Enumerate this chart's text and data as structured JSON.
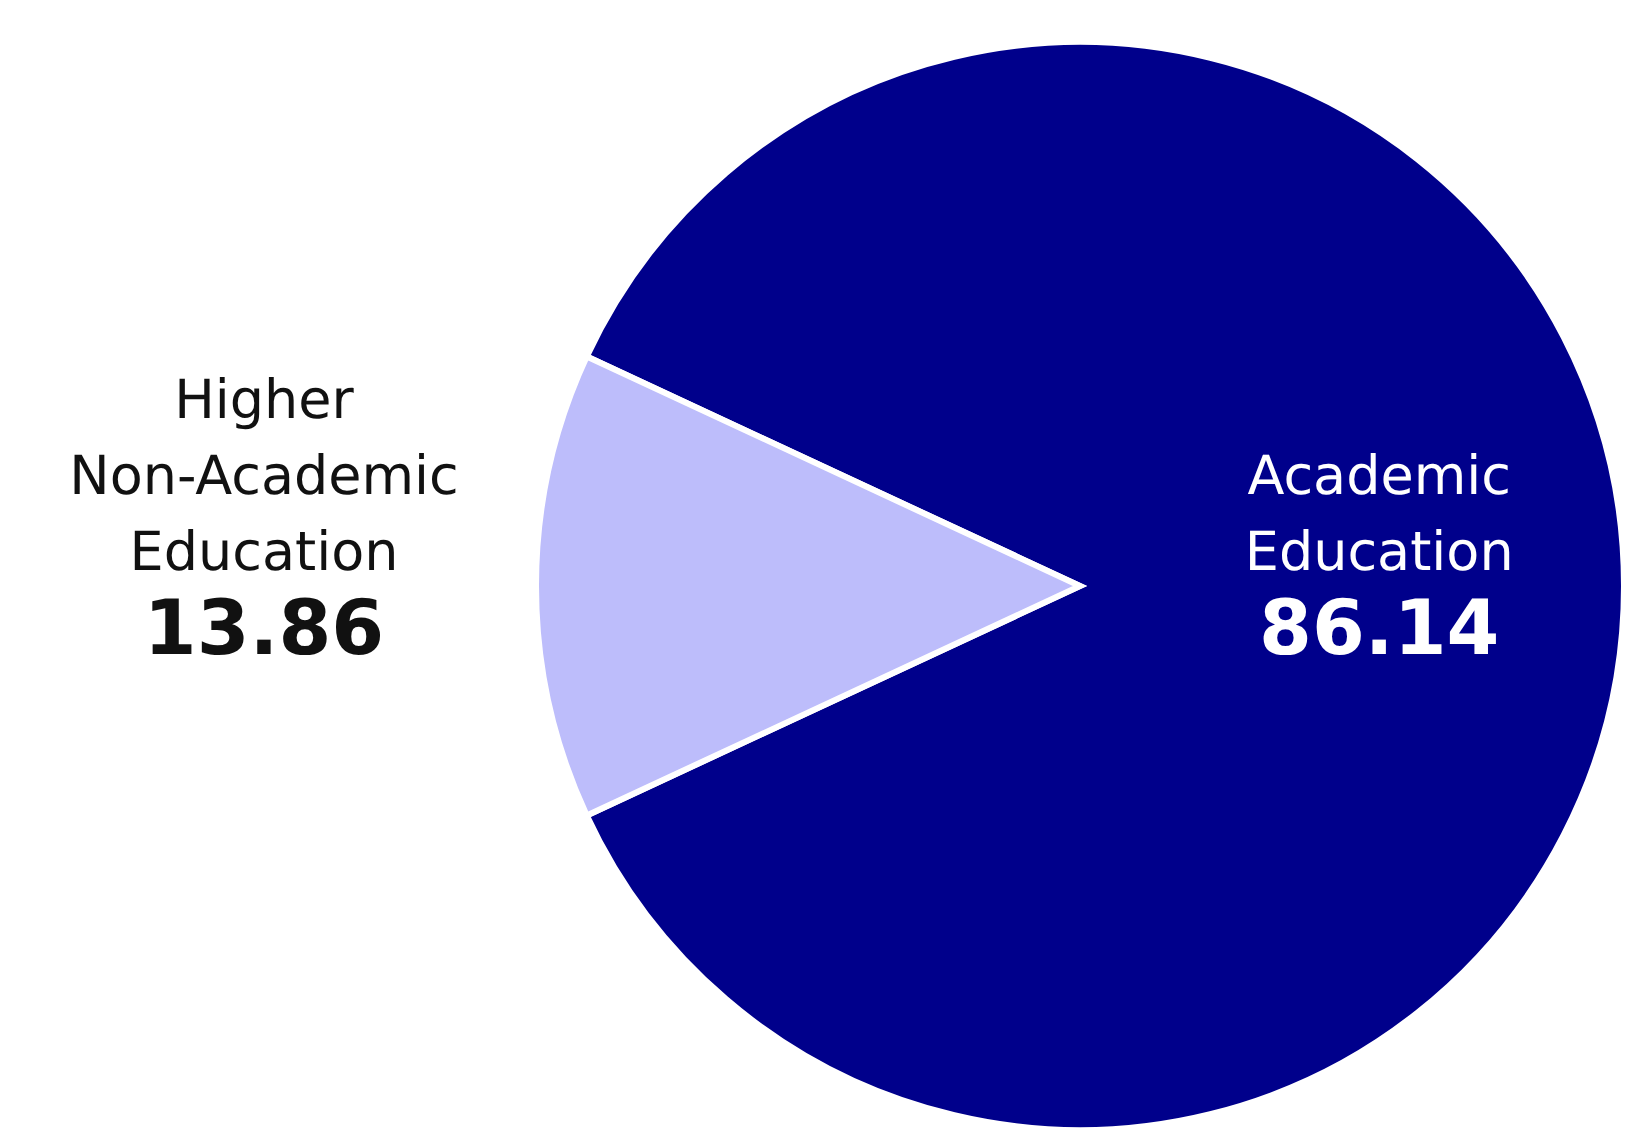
{
  "chart_data": {
    "type": "pie",
    "categories": [
      "Academic Education",
      "Higher Non-Academic Education"
    ],
    "values": [
      86.14,
      13.86
    ],
    "colors": [
      "#00008b",
      "#bdbdfb"
    ],
    "data_labels": true
  }
}
